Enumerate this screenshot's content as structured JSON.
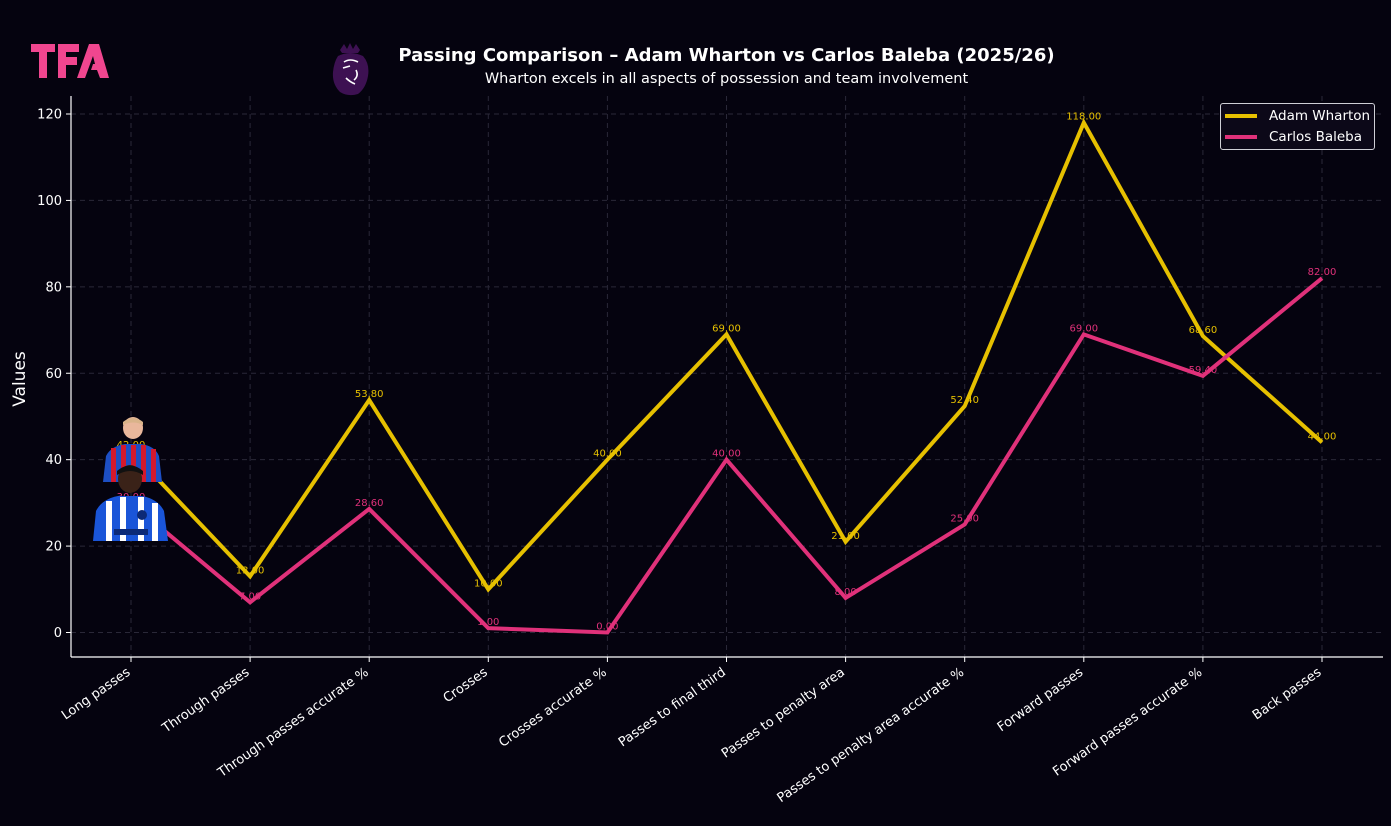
{
  "header": {
    "logo_text": "TFA",
    "title": "Passing Comparison – Adam Wharton vs Carlos Baleba (2025/26)",
    "subtitle": "Wharton excels in all aspects of possession and team involvement"
  },
  "colors": {
    "background": "#05030f",
    "wharton": "#e6c000",
    "baleba": "#e0317a",
    "logo": "#f0468f",
    "pl_logo": "#3d1152"
  },
  "legend": {
    "items": [
      {
        "label": "Adam Wharton",
        "color": "#e6c000"
      },
      {
        "label": "Carlos Baleba",
        "color": "#e0317a"
      }
    ]
  },
  "chart_data": {
    "type": "line",
    "title": "Passing Comparison – Adam Wharton vs Carlos Baleba (2025/26)",
    "subtitle": "Wharton excels in all aspects of possession and team involvement",
    "xlabel": "",
    "ylabel": "Values",
    "ylim": [
      -5.9,
      123.9
    ],
    "yticks": [
      0,
      20,
      40,
      60,
      80,
      100,
      120
    ],
    "grid": true,
    "legend_position": "top-right",
    "categories": [
      "Long passes",
      "Through passes",
      "Through passes accurate %",
      "Crosses",
      "Crosses accurate %",
      "Passes to final third",
      "Passes to penalty area",
      "Passes to penalty area accurate %",
      "Forward passes",
      "Forward passes accurate %",
      "Back passes"
    ],
    "series": [
      {
        "name": "Adam Wharton",
        "color": "#e6c000",
        "values": [
          42,
          13,
          53.8,
          10,
          40,
          69,
          21,
          52.4,
          118,
          68.6,
          44
        ]
      },
      {
        "name": "Carlos Baleba",
        "color": "#e0317a",
        "values": [
          30,
          7,
          28.6,
          1,
          0,
          40,
          8,
          25,
          69,
          59.4,
          82
        ]
      }
    ],
    "data_label_format": "0.00"
  }
}
